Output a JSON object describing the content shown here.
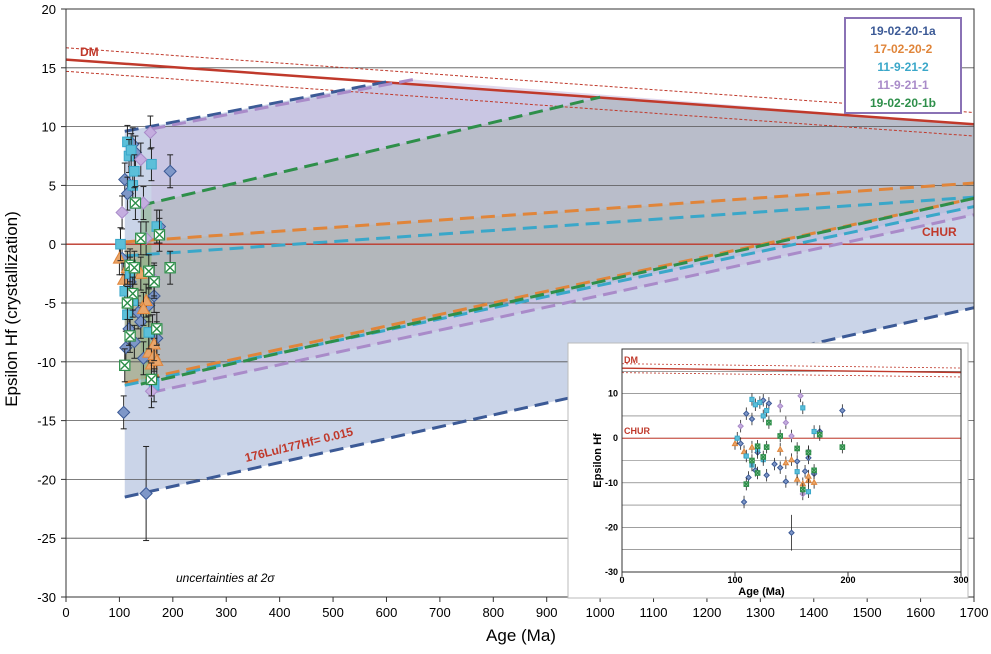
{
  "chart_data": {
    "type": "scatter",
    "xlabel": "Age (Ma)",
    "ylabel": "Epsilon Hf (crystallization)",
    "xlim": [
      0,
      1700
    ],
    "ylim": [
      -30,
      20
    ],
    "xticks": [
      0,
      100,
      200,
      300,
      400,
      500,
      600,
      700,
      800,
      900,
      1000,
      1100,
      1200,
      1300,
      1400,
      1500,
      1600,
      1700
    ],
    "yticks": [
      -30,
      -25,
      -20,
      -15,
      -10,
      -5,
      0,
      5,
      10,
      15,
      20
    ],
    "grid": "horizontal",
    "legend_position": "top-right",
    "reference_lines": {
      "dm_label": "DM",
      "chur_label": "CHUR",
      "dm_line": [
        [
          0,
          15.7
        ],
        [
          1700,
          10.2
        ]
      ],
      "dm_upper": [
        [
          0,
          16.7
        ],
        [
          1700,
          11.2
        ]
      ],
      "dm_lower": [
        [
          0,
          14.7
        ],
        [
          1700,
          9.2
        ]
      ],
      "chur": 0
    },
    "annotation_lu_hf": "176Lu/177Hf= 0.015",
    "annotation_uncertainty": "uncertainties at 2σ",
    "series": [
      {
        "name": "19-02-20-1a",
        "color": "#3c5a96",
        "fill": "#7e97c8",
        "marker": "diamond",
        "points": [
          [
            110,
            5.5
          ],
          [
            115,
            4.3
          ],
          [
            105,
            -1.2
          ],
          [
            112,
            -8.8
          ],
          [
            118,
            -7.2
          ],
          [
            125,
            8.5
          ],
          [
            130,
            7.8
          ],
          [
            120,
            -3.2
          ],
          [
            135,
            -5.8
          ],
          [
            140,
            -6.6
          ],
          [
            108,
            -14.3
          ],
          [
            150,
            -21.2
          ],
          [
            155,
            -5.2
          ],
          [
            162,
            -7.4
          ],
          [
            170,
            -8.0
          ],
          [
            175,
            1.5
          ],
          [
            195,
            6.2
          ],
          [
            165,
            -4.4
          ],
          [
            145,
            -9.7
          ],
          [
            128,
            -8.3
          ]
        ],
        "envelope": {
          "top": [
            [
              110,
              9.6
            ],
            [
              600,
              13.8
            ]
          ],
          "bottom": [
            [
              110,
              -21.5
            ],
            [
              1700,
              -5.4
            ]
          ]
        }
      },
      {
        "name": "17-02-20-2",
        "color": "#e0853a",
        "fill": "#e8a56a",
        "marker": "triangle",
        "points": [
          [
            100,
            -1.2
          ],
          [
            108,
            -3.0
          ],
          [
            115,
            -2.0
          ],
          [
            140,
            -2.5
          ],
          [
            150,
            -4.8
          ],
          [
            155,
            -9.2
          ],
          [
            160,
            -10.2
          ],
          [
            165,
            -9.4
          ],
          [
            170,
            -9.9
          ],
          [
            145,
            -5.5
          ],
          [
            165,
            -8.5
          ]
        ],
        "envelope": {
          "top": [
            [
              110,
              0.2
            ],
            [
              1700,
              5.2
            ]
          ],
          "bottom": [
            [
              110,
              -11.8
            ],
            [
              1700,
              3.9
            ]
          ]
        }
      },
      {
        "name": "11-9-21-2",
        "color": "#3aa7c9",
        "fill": "#5bbfd9",
        "marker": "square",
        "points": [
          [
            115,
            8.7
          ],
          [
            118,
            7.5
          ],
          [
            122,
            8.0
          ],
          [
            125,
            5.0
          ],
          [
            128,
            6.2
          ],
          [
            102,
            0.0
          ],
          [
            110,
            -4.0
          ],
          [
            115,
            -6.0
          ],
          [
            120,
            -2.5
          ],
          [
            160,
            6.8
          ],
          [
            165,
            -12.0
          ],
          [
            170,
            1.5
          ],
          [
            155,
            -7.5
          ],
          [
            125,
            -4.8
          ]
        ],
        "envelope": {
          "top": [
            [
              110,
              -1.0
            ],
            [
              1700,
              4.0
            ]
          ],
          "bottom": [
            [
              110,
              -12.0
            ],
            [
              1700,
              3.2
            ]
          ]
        }
      },
      {
        "name": "11-9-21-1",
        "color": "#a98bc9",
        "fill": "#c4addf",
        "marker": "diamond",
        "points": [
          [
            105,
            2.7
          ],
          [
            140,
            7.2
          ],
          [
            150,
            0.5
          ],
          [
            158,
            9.5
          ],
          [
            160,
            -12.5
          ],
          [
            165,
            -3.0
          ],
          [
            145,
            3.5
          ]
        ],
        "envelope": {
          "top": [
            [
              160,
              9.8
            ],
            [
              650,
              14.0
            ]
          ],
          "bottom": [
            [
              160,
              -12.6
            ],
            [
              1700,
              2.5
            ]
          ]
        }
      },
      {
        "name": "19-02-20-1b",
        "color": "#2e8f4a",
        "fill": "#ffffff",
        "marker": "x-square",
        "points": [
          [
            120,
            -1.8
          ],
          [
            125,
            -4.2
          ],
          [
            130,
            3.5
          ],
          [
            110,
            -10.3
          ],
          [
            115,
            -5.0
          ],
          [
            120,
            -7.8
          ],
          [
            140,
            0.5
          ],
          [
            160,
            -11.5
          ],
          [
            165,
            -3.2
          ],
          [
            170,
            -7.2
          ],
          [
            175,
            0.8
          ],
          [
            195,
            -2.0
          ],
          [
            155,
            -2.3
          ],
          [
            128,
            -2.0
          ]
        ],
        "envelope": {
          "top": [
            [
              140,
              3.3
            ],
            [
              1000,
              12.5
            ]
          ],
          "bottom": [
            [
              140,
              -11.9
            ],
            [
              1700,
              3.9
            ]
          ]
        }
      }
    ],
    "inset": {
      "xlabel": "Age (Ma)",
      "ylabel": "Epsilon Hf",
      "xlim": [
        0,
        300
      ],
      "ylim": [
        -30,
        20
      ],
      "xticks": [
        0,
        100,
        200,
        300
      ],
      "yticks": [
        -30,
        -20,
        -10,
        0,
        10
      ],
      "dm_label": "DM",
      "chur_label": "CHUR"
    }
  }
}
